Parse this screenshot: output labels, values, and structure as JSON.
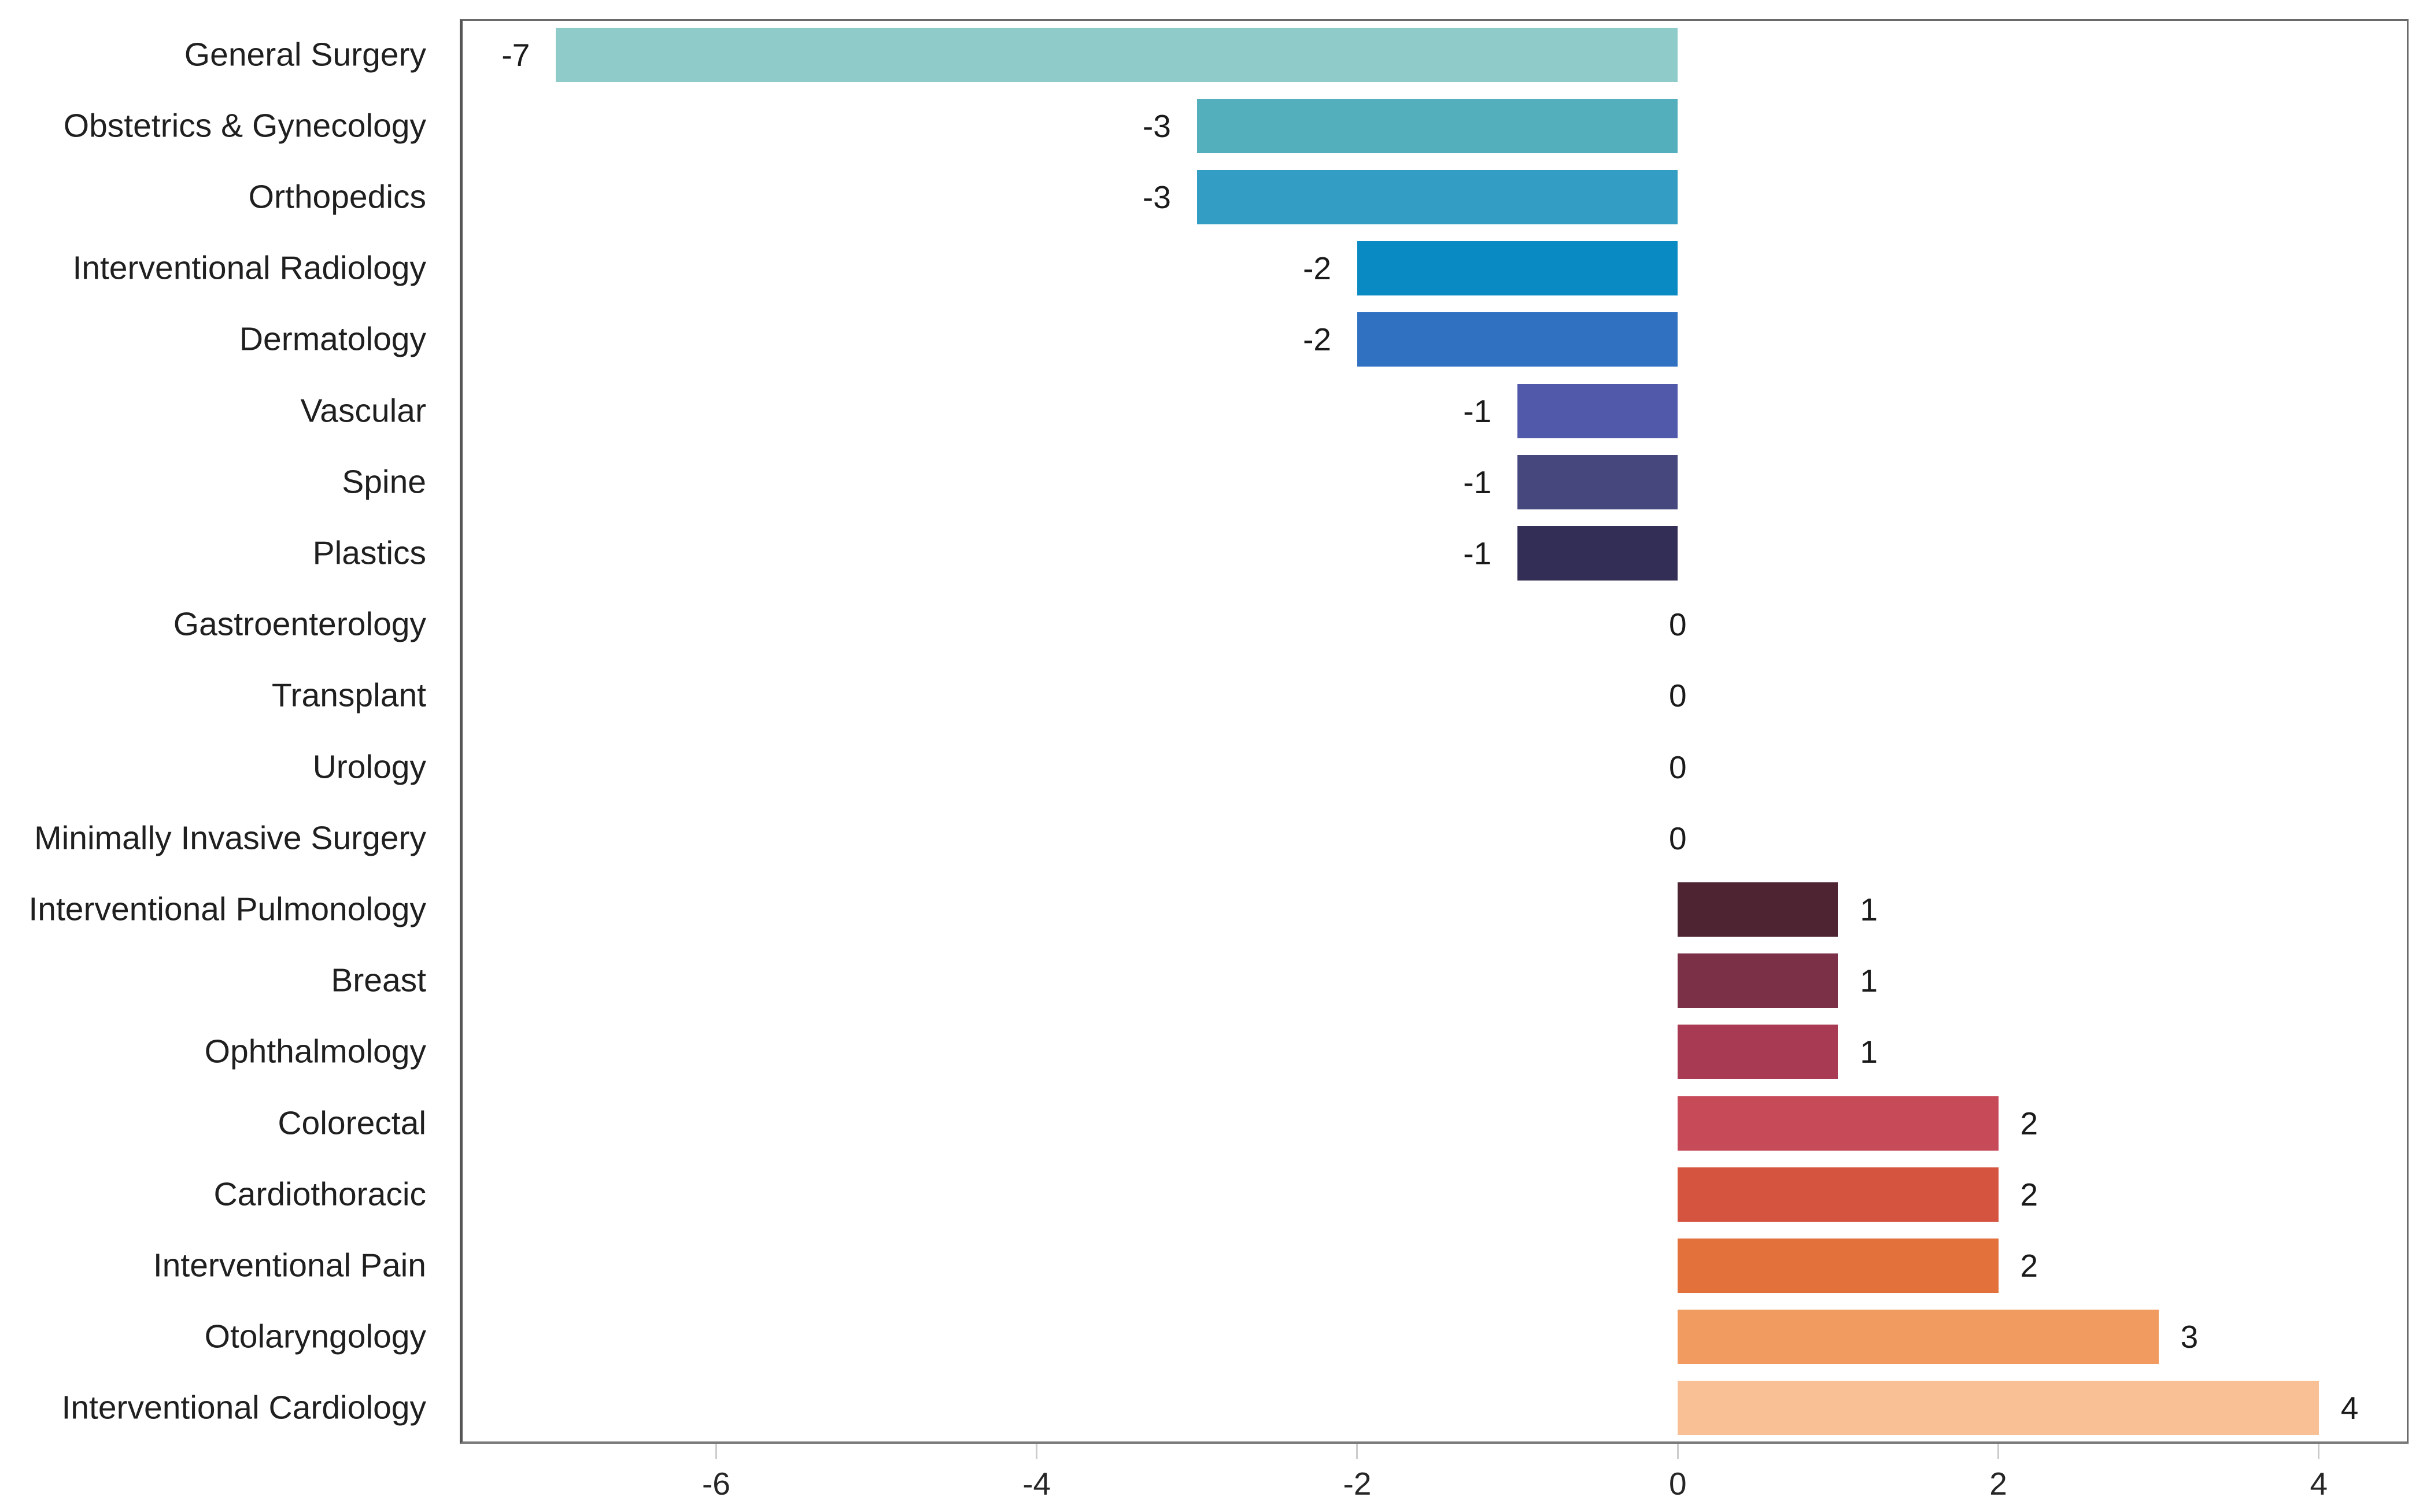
{
  "chart_data": {
    "type": "bar",
    "orientation": "horizontal",
    "title": "",
    "xlabel": "",
    "ylabel": "",
    "xlim": [
      -7.6,
      4.56
    ],
    "grid": false,
    "legend": null,
    "x_ticks": [
      {
        "value": -6,
        "label": "-6"
      },
      {
        "value": -4,
        "label": "-4"
      },
      {
        "value": -2,
        "label": "-2"
      },
      {
        "value": 0,
        "label": "0"
      },
      {
        "value": 2,
        "label": "2"
      },
      {
        "value": 4,
        "label": "4"
      }
    ],
    "points": [
      {
        "category": "General Surgery",
        "value": -7,
        "label": "-7",
        "color": "#8fcbc9"
      },
      {
        "category": "Obstetrics & Gynecology",
        "value": -3,
        "label": "-3",
        "color": "#54afbd"
      },
      {
        "category": "Orthopedics",
        "value": -3,
        "label": "-3",
        "color": "#339dc3"
      },
      {
        "category": "Interventional Radiology",
        "value": -2,
        "label": "-2",
        "color": "#0a8ac2"
      },
      {
        "category": "Dermatology",
        "value": -2,
        "label": "-2",
        "color": "#3071c2"
      },
      {
        "category": "Vascular",
        "value": -1,
        "label": "-1",
        "color": "#5159ab"
      },
      {
        "category": "Spine",
        "value": -1,
        "label": "-1",
        "color": "#45477d"
      },
      {
        "category": "Plastics",
        "value": -1,
        "label": "-1",
        "color": "#332e55"
      },
      {
        "category": "Gastroenterology",
        "value": 0,
        "label": "0",
        "color": null
      },
      {
        "category": "Transplant",
        "value": 0,
        "label": "0",
        "color": null
      },
      {
        "category": "Urology",
        "value": 0,
        "label": "0",
        "color": null
      },
      {
        "category": "Minimally Invasive Surgery",
        "value": 0,
        "label": "0",
        "color": null
      },
      {
        "category": "Interventional Pulmonology",
        "value": 1,
        "label": "1",
        "color": "#4e2433"
      },
      {
        "category": "Breast",
        "value": 1,
        "label": "1",
        "color": "#7b3048"
      },
      {
        "category": "Ophthalmology",
        "value": 1,
        "label": "1",
        "color": "#a93a54"
      },
      {
        "category": "Colorectal",
        "value": 2,
        "label": "2",
        "color": "#c64a58"
      },
      {
        "category": "Cardiothoracic",
        "value": 2,
        "label": "2",
        "color": "#d5543f"
      },
      {
        "category": "Interventional Pain",
        "value": 2,
        "label": "2",
        "color": "#e2713b"
      },
      {
        "category": "Otolaryngology",
        "value": 3,
        "label": "3",
        "color": "#f29b60"
      },
      {
        "category": "Interventional Cardiology",
        "value": 4,
        "label": "4",
        "color": "#f9c095"
      }
    ]
  },
  "styles": {
    "background": "#ffffff",
    "plot_border": "#6a6a6a",
    "category_axis_line": "#565656",
    "value_axis_line": "#7a7a7a",
    "tick_mark": "#cccccc",
    "text": "#1f1f1f"
  }
}
